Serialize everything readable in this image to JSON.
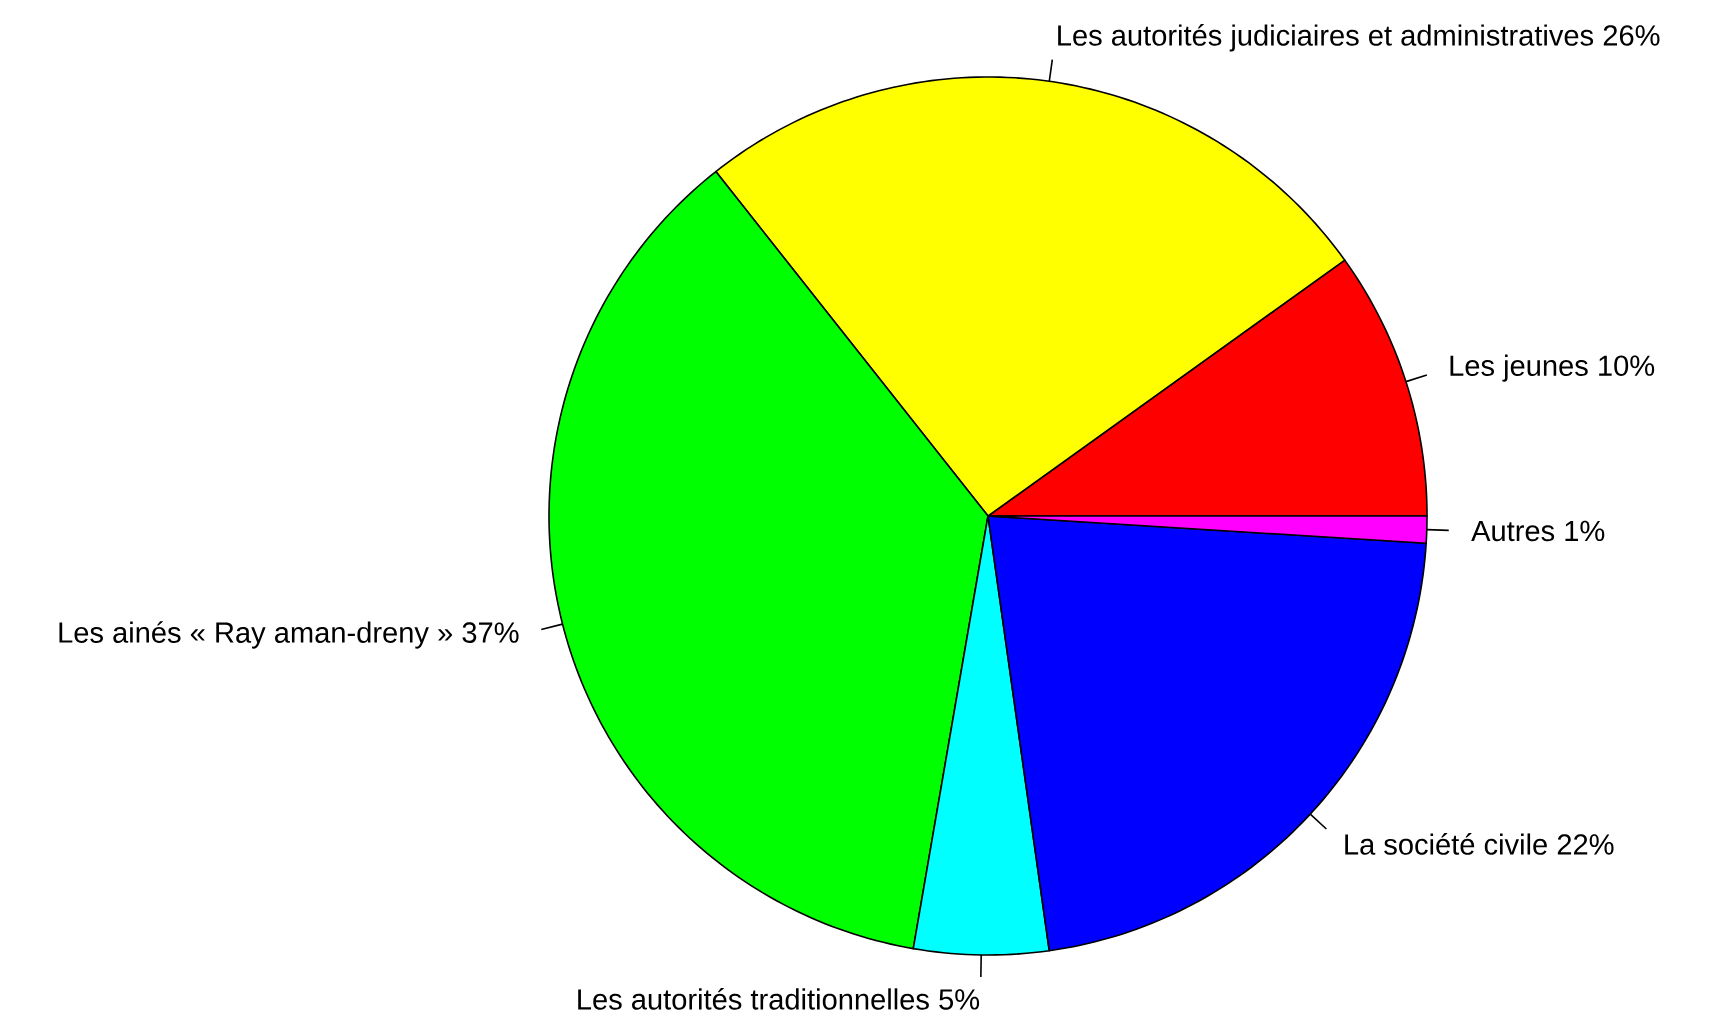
{
  "chart_data": {
    "type": "pie",
    "categories": [
      "Les jeunes",
      "Les autorités judiciaires et administratives",
      "Les ainés « Ray aman-dreny »",
      "Les autorités traditionnelles",
      "La société civile",
      "Autres"
    ],
    "values": [
      10,
      26,
      37,
      5,
      22,
      1
    ],
    "value_labels": [
      "10%",
      "26%",
      "37%",
      "5%",
      "22%",
      "1%"
    ],
    "colors": [
      "#ff0000",
      "#ffff00",
      "#00ff00",
      "#00ffff",
      "#0000ff",
      "#ff00ff"
    ]
  }
}
